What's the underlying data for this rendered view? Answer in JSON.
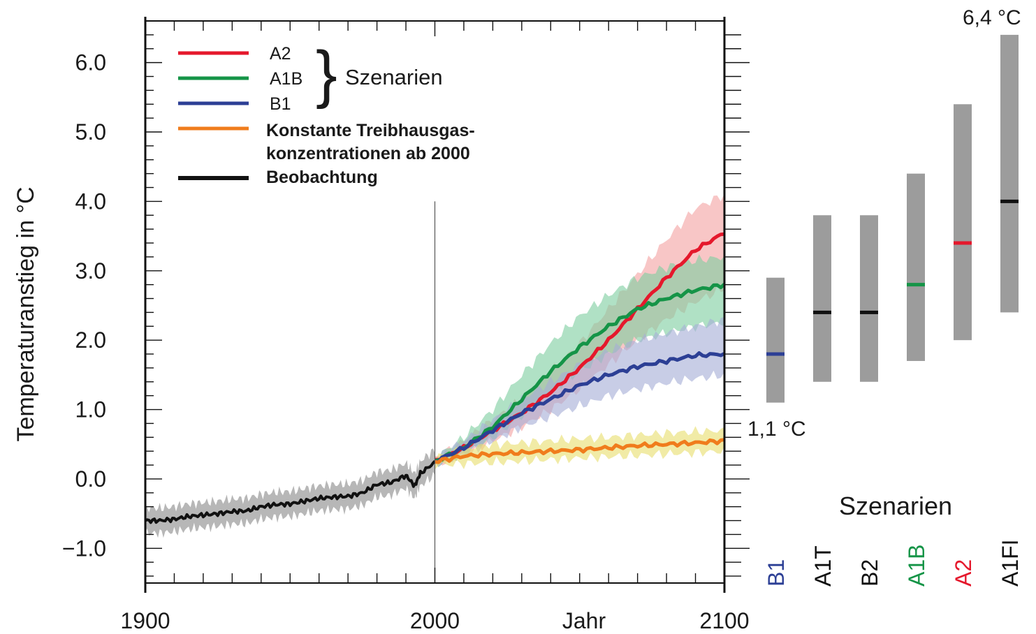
{
  "chart_data": {
    "type": "line",
    "title": "",
    "xlabel": "Jahr",
    "ylabel": "Temperaturanstieg in °C",
    "xlim": [
      1900,
      2100
    ],
    "ylim": [
      -1.5,
      6.6
    ],
    "x_ticks": [
      "1900",
      "2000",
      "2100"
    ],
    "y_ticks": [
      "−1.0",
      "0.0",
      "1.0",
      "2.0",
      "3.0",
      "4.0",
      "5.0",
      "6.0"
    ],
    "y_tick_values": [
      -1,
      0,
      1,
      2,
      3,
      4,
      5,
      6
    ],
    "x_tick_values": [
      1900,
      2000,
      2100
    ],
    "marker_year": 2000,
    "legend_position": "top-left",
    "legend": {
      "a2": "A2",
      "a1b": "A1B",
      "b1": "B1",
      "group": "Szenarien",
      "constant_line1": "Konstante Treibhausgas-",
      "constant_line2": "konzentrationen ab 2000",
      "observed": "Beobachtung"
    },
    "series": [
      {
        "name": "Beobachtung",
        "color": "#111111",
        "band_color": "#8a8a8a",
        "x": [
          1900,
          1905,
          1910,
          1915,
          1920,
          1925,
          1930,
          1935,
          1940,
          1945,
          1950,
          1955,
          1960,
          1965,
          1970,
          1975,
          1980,
          1985,
          1990,
          1993,
          1995,
          2000
        ],
        "values": [
          -0.6,
          -0.6,
          -0.58,
          -0.54,
          -0.52,
          -0.5,
          -0.47,
          -0.46,
          -0.4,
          -0.37,
          -0.36,
          -0.32,
          -0.28,
          -0.26,
          -0.25,
          -0.2,
          -0.08,
          -0.05,
          0.05,
          -0.1,
          0.08,
          0.24
        ],
        "band": 0.18
      },
      {
        "name": "A2",
        "color": "#e5182c",
        "band_color": "#f4a3a3",
        "x": [
          2000,
          2010,
          2020,
          2030,
          2040,
          2050,
          2060,
          2070,
          2080,
          2090,
          2100
        ],
        "values": [
          0.25,
          0.45,
          0.7,
          0.95,
          1.25,
          1.6,
          2.0,
          2.45,
          2.9,
          3.3,
          3.55
        ],
        "band_low": [
          0.2,
          0.35,
          0.55,
          0.75,
          1.0,
          1.3,
          1.65,
          2.0,
          2.3,
          2.55,
          2.75
        ],
        "band_high": [
          0.3,
          0.55,
          0.85,
          1.15,
          1.55,
          1.95,
          2.45,
          2.95,
          3.45,
          3.9,
          4.1
        ]
      },
      {
        "name": "A1B",
        "color": "#159447",
        "band_color": "#7fcfa2",
        "x": [
          2000,
          2010,
          2020,
          2030,
          2040,
          2050,
          2060,
          2070,
          2080,
          2090,
          2100
        ],
        "values": [
          0.25,
          0.45,
          0.75,
          1.15,
          1.55,
          1.9,
          2.2,
          2.45,
          2.6,
          2.72,
          2.8
        ],
        "band_low": [
          0.2,
          0.35,
          0.6,
          0.9,
          1.25,
          1.55,
          1.8,
          2.0,
          2.1,
          2.2,
          2.25
        ],
        "band_high": [
          0.3,
          0.6,
          1.0,
          1.5,
          1.95,
          2.35,
          2.65,
          2.9,
          3.05,
          3.15,
          3.2
        ]
      },
      {
        "name": "B1",
        "color": "#2c3f95",
        "band_color": "#a7aed6",
        "x": [
          2000,
          2010,
          2020,
          2030,
          2040,
          2050,
          2060,
          2070,
          2080,
          2090,
          2100
        ],
        "values": [
          0.25,
          0.45,
          0.7,
          0.95,
          1.15,
          1.35,
          1.5,
          1.62,
          1.7,
          1.78,
          1.8
        ],
        "band_low": [
          0.2,
          0.35,
          0.55,
          0.75,
          0.9,
          1.05,
          1.2,
          1.3,
          1.38,
          1.45,
          1.5
        ],
        "band_high": [
          0.3,
          0.55,
          0.85,
          1.15,
          1.4,
          1.65,
          1.85,
          2.0,
          2.1,
          2.2,
          2.3
        ]
      },
      {
        "name": "Konstante Treibhausgaskonzentrationen ab 2000",
        "color": "#f07c1c",
        "band_color": "#e9df6f",
        "x": [
          2000,
          2010,
          2020,
          2030,
          2040,
          2050,
          2060,
          2070,
          2080,
          2090,
          2100
        ],
        "values": [
          0.25,
          0.33,
          0.36,
          0.38,
          0.4,
          0.42,
          0.45,
          0.48,
          0.5,
          0.52,
          0.55
        ],
        "band_low": [
          0.2,
          0.22,
          0.24,
          0.26,
          0.28,
          0.3,
          0.32,
          0.34,
          0.36,
          0.38,
          0.4
        ],
        "band_high": [
          0.3,
          0.45,
          0.5,
          0.52,
          0.55,
          0.58,
          0.6,
          0.63,
          0.66,
          0.68,
          0.7
        ]
      }
    ],
    "ranges": {
      "title": "Szenarien",
      "low_annotation": "1,1 °C",
      "high_annotation": "6,4 °C",
      "bars": [
        {
          "name": "B1",
          "low": 1.1,
          "high": 2.9,
          "best": 1.8,
          "color": "#2c3f95"
        },
        {
          "name": "A1T",
          "low": 1.4,
          "high": 3.8,
          "best": 2.4,
          "color": "#111111"
        },
        {
          "name": "B2",
          "low": 1.4,
          "high": 3.8,
          "best": 2.4,
          "color": "#111111"
        },
        {
          "name": "A1B",
          "low": 1.7,
          "high": 4.4,
          "best": 2.8,
          "color": "#159447"
        },
        {
          "name": "A2",
          "low": 2.0,
          "high": 5.4,
          "best": 3.4,
          "color": "#e5182c"
        },
        {
          "name": "A1FI",
          "low": 2.4,
          "high": 6.4,
          "best": 4.0,
          "color": "#111111"
        }
      ],
      "bar_fill": "#9c9c9c"
    }
  }
}
